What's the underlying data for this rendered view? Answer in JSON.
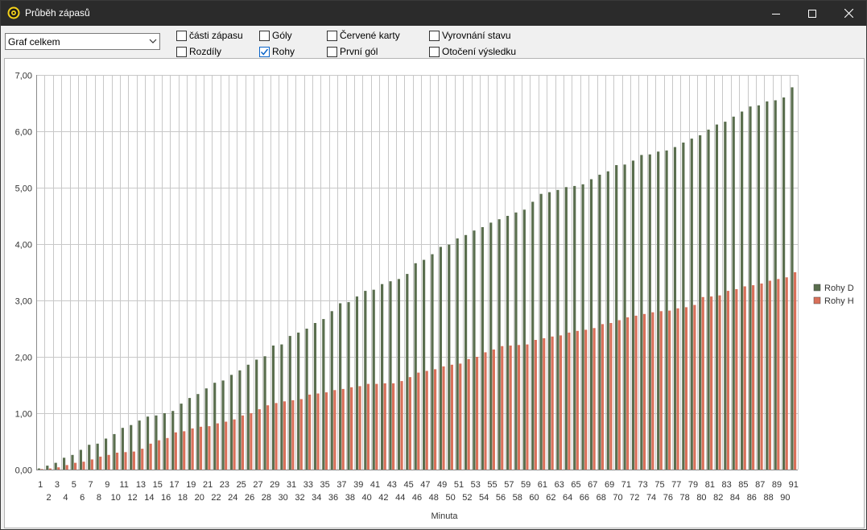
{
  "window": {
    "title": "Průběh zápasů",
    "minimize_icon": "minimize-icon",
    "maximize_icon": "maximize-icon",
    "close_icon": "close-icon"
  },
  "toolbar": {
    "dropdown_value": "Graf celkem",
    "checkboxes": [
      {
        "label": "části zápasu",
        "checked": false
      },
      {
        "label": "Rozdíly",
        "checked": false
      },
      {
        "label": "Góly",
        "checked": false
      },
      {
        "label": "Rohy",
        "checked": true
      },
      {
        "label": "Červené karty",
        "checked": false
      },
      {
        "label": "První gól",
        "checked": false
      },
      {
        "label": "Vyrovnání stavu",
        "checked": false
      },
      {
        "label": "Otočení výsledku",
        "checked": false
      }
    ]
  },
  "chart_data": {
    "type": "bar",
    "xlabel": "Minuta",
    "ylabel": "",
    "ylim": [
      0,
      7
    ],
    "yticks": [
      "0,00",
      "1,00",
      "2,00",
      "3,00",
      "4,00",
      "5,00",
      "6,00",
      "7,00"
    ],
    "grid": true,
    "legend_position": "right",
    "categories": [
      1,
      2,
      3,
      4,
      5,
      6,
      7,
      8,
      9,
      10,
      11,
      12,
      13,
      14,
      15,
      16,
      17,
      18,
      19,
      20,
      21,
      22,
      23,
      24,
      25,
      26,
      27,
      28,
      29,
      30,
      31,
      32,
      33,
      34,
      35,
      36,
      37,
      38,
      39,
      40,
      41,
      42,
      43,
      44,
      45,
      46,
      47,
      48,
      49,
      50,
      51,
      52,
      53,
      54,
      55,
      56,
      57,
      58,
      59,
      60,
      61,
      62,
      63,
      64,
      65,
      66,
      67,
      68,
      69,
      70,
      71,
      72,
      73,
      74,
      75,
      76,
      77,
      78,
      79,
      80,
      81,
      82,
      83,
      84,
      85,
      86,
      87,
      88,
      89,
      90,
      91
    ],
    "series": [
      {
        "name": "Rohy D",
        "color": "#5a6e4e",
        "values": [
          0.02,
          0.07,
          0.12,
          0.21,
          0.26,
          0.35,
          0.44,
          0.46,
          0.55,
          0.63,
          0.74,
          0.79,
          0.87,
          0.94,
          0.96,
          1.0,
          1.04,
          1.17,
          1.27,
          1.34,
          1.44,
          1.54,
          1.58,
          1.68,
          1.76,
          1.86,
          1.95,
          2.01,
          2.2,
          2.22,
          2.37,
          2.43,
          2.5,
          2.6,
          2.67,
          2.81,
          2.95,
          2.97,
          3.07,
          3.17,
          3.19,
          3.29,
          3.34,
          3.38,
          3.47,
          3.66,
          3.72,
          3.82,
          3.95,
          3.99,
          4.1,
          4.16,
          4.24,
          4.3,
          4.38,
          4.44,
          4.5,
          4.56,
          4.61,
          4.75,
          4.89,
          4.92,
          4.96,
          5.01,
          5.03,
          5.06,
          5.15,
          5.23,
          5.29,
          5.4,
          5.41,
          5.48,
          5.58,
          5.59,
          5.64,
          5.66,
          5.72,
          5.8,
          5.87,
          5.93,
          6.03,
          6.12,
          6.17,
          6.26,
          6.35,
          6.44,
          6.46,
          6.53,
          6.55,
          6.6,
          6.78
        ]
      },
      {
        "name": "Rohy H",
        "color": "#d9705a",
        "values": [
          0.01,
          0.02,
          0.04,
          0.08,
          0.12,
          0.14,
          0.18,
          0.23,
          0.26,
          0.3,
          0.31,
          0.32,
          0.37,
          0.46,
          0.52,
          0.56,
          0.66,
          0.68,
          0.73,
          0.76,
          0.77,
          0.82,
          0.85,
          0.89,
          0.96,
          1.0,
          1.07,
          1.14,
          1.18,
          1.21,
          1.23,
          1.25,
          1.33,
          1.35,
          1.37,
          1.41,
          1.43,
          1.46,
          1.48,
          1.52,
          1.52,
          1.53,
          1.53,
          1.57,
          1.64,
          1.72,
          1.75,
          1.78,
          1.83,
          1.86,
          1.88,
          1.96,
          2.0,
          2.08,
          2.13,
          2.19,
          2.2,
          2.21,
          2.22,
          2.3,
          2.33,
          2.36,
          2.38,
          2.43,
          2.46,
          2.48,
          2.51,
          2.58,
          2.6,
          2.65,
          2.7,
          2.73,
          2.76,
          2.79,
          2.81,
          2.82,
          2.86,
          2.88,
          2.92,
          3.06,
          3.07,
          3.09,
          3.17,
          3.2,
          3.25,
          3.27,
          3.3,
          3.35,
          3.38,
          3.41,
          3.5
        ]
      }
    ]
  }
}
